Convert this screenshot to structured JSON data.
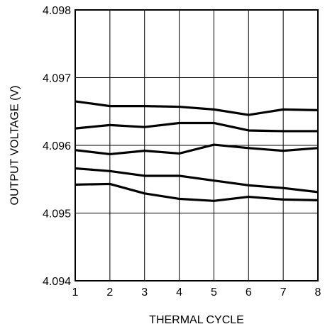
{
  "chart_data": {
    "type": "line",
    "title": "",
    "xlabel": "THERMAL CYCLE",
    "ylabel": "OUTPUT VOLTAGE (V)",
    "x": [
      1,
      2,
      3,
      4,
      5,
      6,
      7,
      8
    ],
    "xlim": [
      1,
      8
    ],
    "ylim": [
      4.094,
      4.098
    ],
    "x_ticks": [
      "1",
      "2",
      "3",
      "4",
      "5",
      "6",
      "7",
      "8"
    ],
    "y_ticks": [
      "4.094",
      "4.095",
      "4.096",
      "4.097",
      "4.098"
    ],
    "grid": true,
    "line_color": "#000000",
    "series": [
      {
        "values": [
          4.09665,
          4.09658,
          4.09658,
          4.09657,
          4.09653,
          4.09645,
          4.09653,
          4.09652
        ]
      },
      {
        "values": [
          4.09625,
          4.0963,
          4.09627,
          4.09633,
          4.09633,
          4.09622,
          4.09621,
          4.09621
        ]
      },
      {
        "values": [
          4.09593,
          4.09587,
          4.09592,
          4.09588,
          4.09601,
          4.09596,
          4.09592,
          4.09596
        ]
      },
      {
        "values": [
          4.09566,
          4.09562,
          4.09555,
          4.09555,
          4.09548,
          4.09541,
          4.09537,
          4.09531
        ]
      },
      {
        "values": [
          4.09542,
          4.09543,
          4.09529,
          4.09521,
          4.09518,
          4.09524,
          4.0952,
          4.09519
        ]
      }
    ]
  }
}
